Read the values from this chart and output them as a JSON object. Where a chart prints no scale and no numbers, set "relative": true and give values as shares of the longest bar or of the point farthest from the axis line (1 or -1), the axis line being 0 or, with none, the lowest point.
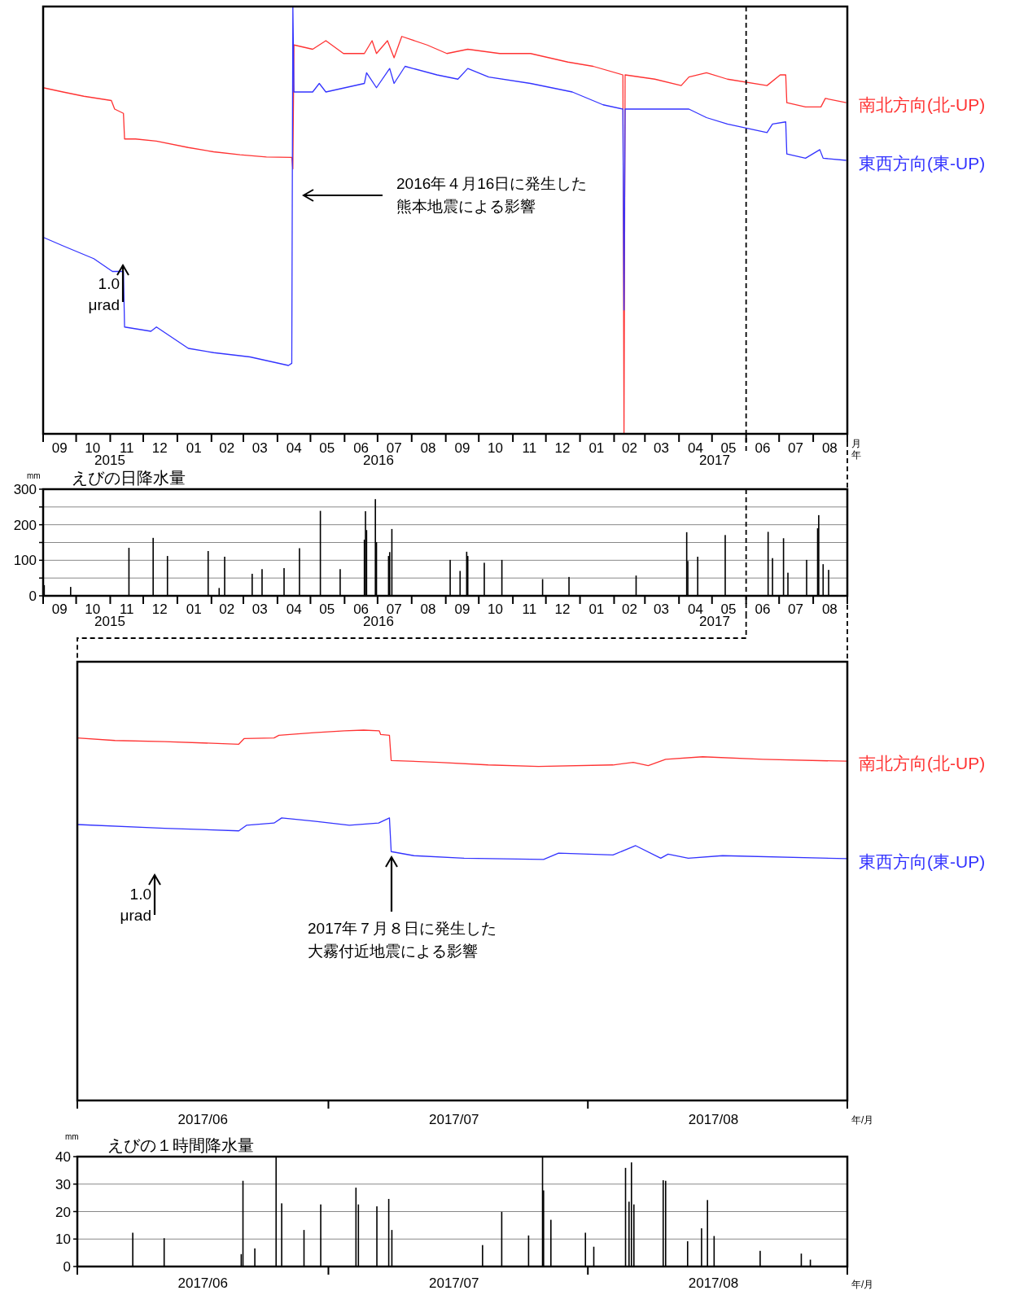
{
  "chart_data": [
    {
      "type": "line",
      "relative": true,
      "legend": false,
      "xlabel": "月",
      "xlim": [
        "2015-09-01",
        "2017-09-01"
      ],
      "xticks": [
        {
          "value": "2015-09-01",
          "label": null
        },
        {
          "value": "2015-09-16",
          "label": "09"
        },
        {
          "value": "2015-10-01",
          "label": null
        },
        {
          "value": "2015-10-16",
          "label": "10"
        },
        {
          "value": "2015-11-01",
          "label": null
        },
        {
          "value": "2015-11-16",
          "label": "11"
        },
        {
          "value": "2015-12-01",
          "label": null
        },
        {
          "value": "2015-12-16",
          "label": "12"
        },
        {
          "value": "2016-01-01",
          "label": null
        },
        {
          "value": "2016-01-16",
          "label": "01"
        },
        {
          "value": "2016-02-01",
          "label": null
        },
        {
          "value": "2016-02-15",
          "label": "02"
        },
        {
          "value": "2016-03-01",
          "label": null
        },
        {
          "value": "2016-03-16",
          "label": "03"
        },
        {
          "value": "2016-04-01",
          "label": null
        },
        {
          "value": "2016-04-16",
          "label": "04"
        },
        {
          "value": "2016-05-01",
          "label": null
        },
        {
          "value": "2016-05-16",
          "label": "05"
        },
        {
          "value": "2016-06-01",
          "label": null
        },
        {
          "value": "2016-06-16",
          "label": "06"
        },
        {
          "value": "2016-07-01",
          "label": null
        },
        {
          "value": "2016-07-16",
          "label": "07"
        },
        {
          "value": "2016-08-01",
          "label": null
        },
        {
          "value": "2016-08-16",
          "label": "08"
        },
        {
          "value": "2016-09-01",
          "label": null
        },
        {
          "value": "2016-09-16",
          "label": "09"
        },
        {
          "value": "2016-10-01",
          "label": null
        },
        {
          "value": "2016-10-16",
          "label": "10"
        },
        {
          "value": "2016-11-01",
          "label": null
        },
        {
          "value": "2016-11-16",
          "label": "11"
        },
        {
          "value": "2016-12-01",
          "label": null
        },
        {
          "value": "2016-12-16",
          "label": "12"
        },
        {
          "value": "2017-01-01",
          "label": null
        },
        {
          "value": "2017-01-16",
          "label": "01"
        },
        {
          "value": "2017-02-01",
          "label": null
        },
        {
          "value": "2017-02-15",
          "label": "02"
        },
        {
          "value": "2017-03-01",
          "label": null
        },
        {
          "value": "2017-03-16",
          "label": "03"
        },
        {
          "value": "2017-04-01",
          "label": null
        },
        {
          "value": "2017-04-16",
          "label": "04"
        },
        {
          "value": "2017-05-01",
          "label": null
        },
        {
          "value": "2017-05-16",
          "label": "05"
        },
        {
          "value": "2017-06-01",
          "label": null
        },
        {
          "value": "2017-06-16",
          "label": "06"
        },
        {
          "value": "2017-07-01",
          "label": null
        },
        {
          "value": "2017-07-16",
          "label": "07"
        },
        {
          "value": "2017-08-01",
          "label": null
        },
        {
          "value": "2017-08-16",
          "label": "08"
        },
        {
          "value": "2017-09-01",
          "label": null
        }
      ],
      "ref_lines": [
        {
          "axis": "x",
          "value": "2017-06-01",
          "line_style": "dashed",
          "color": "#000000"
        }
      ],
      "annotations": [
        "2016年４月16日に発生した",
        "熊本地震による影響",
        "1.0\nμrad",
        "2015",
        "2016",
        "2017",
        "年"
      ],
      "series": [
        {
          "name": "南北方向(北-UP)",
          "color": "#ff3333",
          "x": [
            "2015-09-01",
            "2015-09-19",
            "2015-10-08",
            "2015-11-02",
            "2015-11-05",
            "2015-11-13",
            "2015-11-14",
            "2015-11-24",
            "2015-12-13",
            "2016-01-11",
            "2016-02-03",
            "2016-02-27",
            "2016-03-22",
            "2016-04-14",
            "2016-04-15",
            "2016-04-16",
            "2016-05-03",
            "2016-05-15",
            "2016-05-31",
            "2016-06-19",
            "2016-06-26",
            "2016-06-30",
            "2016-07-10",
            "2016-07-16",
            "2016-07-23",
            "2016-08-15",
            "2016-09-02",
            "2016-09-21",
            "2016-10-20",
            "2016-11-17",
            "2016-12-21",
            "2017-01-13",
            "2017-02-09",
            "2017-02-10",
            "2017-02-11",
            "2017-03-10",
            "2017-04-03",
            "2017-04-10",
            "2017-04-26",
            "2017-05-15",
            "2017-06-20",
            "2017-07-02",
            "2017-07-07",
            "2017-07-08",
            "2017-07-25",
            "2017-08-08",
            "2017-08-12",
            "2017-08-31"
          ],
          "values": [
            0.81,
            0.8,
            0.79,
            0.78,
            0.76,
            0.75,
            0.69,
            0.69,
            0.685,
            0.67,
            0.66,
            0.653,
            0.648,
            0.647,
            0.62,
            0.91,
            0.9,
            0.92,
            0.89,
            0.89,
            0.92,
            0.89,
            0.92,
            0.88,
            0.93,
            0.91,
            0.89,
            0.9,
            0.89,
            0.89,
            0.87,
            0.86,
            0.84,
            0,
            0.84,
            0.83,
            0.815,
            0.835,
            0.845,
            0.83,
            0.815,
            0.84,
            0.84,
            0.775,
            0.765,
            0.765,
            0.785,
            0.775
          ]
        },
        {
          "name": "東西方向(東-UP)",
          "color": "#3333ff",
          "x": [
            "2015-09-01",
            "2015-09-19",
            "2015-10-17",
            "2015-11-03",
            "2015-11-13",
            "2015-11-14",
            "2015-12-08",
            "2015-12-13",
            "2016-01-11",
            "2016-02-03",
            "2016-03-07",
            "2016-04-11",
            "2016-04-14",
            "2016-04-15",
            "2016-04-16",
            "2016-05-03",
            "2016-05-09",
            "2016-05-15",
            "2016-06-19",
            "2016-06-21",
            "2016-06-30",
            "2016-07-12",
            "2016-07-16",
            "2016-07-26",
            "2016-08-24",
            "2016-09-12",
            "2016-09-21",
            "2016-10-10",
            "2016-11-17",
            "2016-12-25",
            "2017-01-22",
            "2017-02-09",
            "2017-02-10",
            "2017-02-11",
            "2017-03-10",
            "2017-04-10",
            "2017-04-26",
            "2017-05-15",
            "2017-06-20",
            "2017-06-25",
            "2017-07-07",
            "2017-07-08",
            "2017-07-25",
            "2017-08-07",
            "2017-08-10",
            "2017-08-31"
          ],
          "values": [
            0.46,
            0.44,
            0.41,
            0.38,
            0.38,
            0.25,
            0.24,
            0.25,
            0.2,
            0.19,
            0.18,
            0.16,
            0.165,
            1,
            0.8,
            0.8,
            0.82,
            0.8,
            0.82,
            0.845,
            0.81,
            0.855,
            0.82,
            0.86,
            0.84,
            0.83,
            0.855,
            0.835,
            0.82,
            0.8,
            0.77,
            0.76,
            0.29,
            0.76,
            0.76,
            0.76,
            0.74,
            0.725,
            0.705,
            0.725,
            0.73,
            0.655,
            0.645,
            0.665,
            0.645,
            0.64
          ]
        }
      ]
    },
    {
      "type": "bar",
      "title": "えびの日降水量",
      "ylabel": "mm",
      "grid": "y",
      "xlim": [
        "2015-09-01",
        "2017-09-01"
      ],
      "ylim": [
        0,
        300
      ],
      "yticks": [
        0,
        {
          "value": 50,
          "label": null
        },
        100,
        {
          "value": 150,
          "label": null
        },
        200,
        {
          "value": 250,
          "label": null
        },
        300
      ],
      "xticks": [
        {
          "value": "2015-09-01",
          "label": null
        },
        {
          "value": "2015-09-16",
          "label": "09"
        },
        {
          "value": "2015-10-01",
          "label": null
        },
        {
          "value": "2015-10-16",
          "label": "10"
        },
        {
          "value": "2015-11-01",
          "label": null
        },
        {
          "value": "2015-11-16",
          "label": "11"
        },
        {
          "value": "2015-12-01",
          "label": null
        },
        {
          "value": "2015-12-16",
          "label": "12"
        },
        {
          "value": "2016-01-01",
          "label": null
        },
        {
          "value": "2016-01-16",
          "label": "01"
        },
        {
          "value": "2016-02-01",
          "label": null
        },
        {
          "value": "2016-02-15",
          "label": "02"
        },
        {
          "value": "2016-03-01",
          "label": null
        },
        {
          "value": "2016-03-16",
          "label": "03"
        },
        {
          "value": "2016-04-01",
          "label": null
        },
        {
          "value": "2016-04-16",
          "label": "04"
        },
        {
          "value": "2016-05-01",
          "label": null
        },
        {
          "value": "2016-05-16",
          "label": "05"
        },
        {
          "value": "2016-06-01",
          "label": null
        },
        {
          "value": "2016-06-16",
          "label": "06"
        },
        {
          "value": "2016-07-01",
          "label": null
        },
        {
          "value": "2016-07-16",
          "label": "07"
        },
        {
          "value": "2016-08-01",
          "label": null
        },
        {
          "value": "2016-08-16",
          "label": "08"
        },
        {
          "value": "2016-09-01",
          "label": null
        },
        {
          "value": "2016-09-16",
          "label": "09"
        },
        {
          "value": "2016-10-01",
          "label": null
        },
        {
          "value": "2016-10-16",
          "label": "10"
        },
        {
          "value": "2016-11-01",
          "label": null
        },
        {
          "value": "2016-11-16",
          "label": "11"
        },
        {
          "value": "2016-12-01",
          "label": null
        },
        {
          "value": "2016-12-16",
          "label": "12"
        },
        {
          "value": "2017-01-01",
          "label": null
        },
        {
          "value": "2017-01-16",
          "label": "01"
        },
        {
          "value": "2017-02-01",
          "label": null
        },
        {
          "value": "2017-02-15",
          "label": "02"
        },
        {
          "value": "2017-03-01",
          "label": null
        },
        {
          "value": "2017-03-16",
          "label": "03"
        },
        {
          "value": "2017-04-01",
          "label": null
        },
        {
          "value": "2017-04-16",
          "label": "04"
        },
        {
          "value": "2017-05-01",
          "label": null
        },
        {
          "value": "2017-05-16",
          "label": "05"
        },
        {
          "value": "2017-06-01",
          "label": null
        },
        {
          "value": "2017-06-16",
          "label": "06"
        },
        {
          "value": "2017-07-01",
          "label": null
        },
        {
          "value": "2017-07-16",
          "label": "07"
        },
        {
          "value": "2017-08-01",
          "label": null
        },
        {
          "value": "2017-08-16",
          "label": "08"
        },
        {
          "value": "2017-09-01",
          "label": null
        }
      ],
      "ref_lines": [
        {
          "axis": "x",
          "value": "2017-06-01",
          "line_style": "dashed",
          "color": "#000000"
        }
      ],
      "annotations": [
        "2015",
        "2016",
        "2017"
      ],
      "series": [
        {
          "color": "#000000",
          "x": [
            "2015-09-02",
            "2015-09-26",
            "2015-11-18",
            "2015-12-10",
            "2015-12-23",
            "2016-01-29",
            "2016-02-08",
            "2016-02-13",
            "2016-03-09",
            "2016-03-18",
            "2016-04-07",
            "2016-04-21",
            "2016-05-10",
            "2016-05-28",
            "2016-06-19",
            "2016-06-20",
            "2016-06-21",
            "2016-06-29",
            "2016-06-30",
            "2016-07-11",
            "2016-07-12",
            "2016-07-14",
            "2016-09-05",
            "2016-09-14",
            "2016-09-20",
            "2016-09-21",
            "2016-10-06",
            "2016-10-22",
            "2016-11-28",
            "2016-12-22",
            "2017-02-21",
            "2017-04-08",
            "2017-04-09",
            "2017-04-18",
            "2017-05-13",
            "2017-06-21",
            "2017-06-25",
            "2017-07-05",
            "2017-07-09",
            "2017-07-26",
            "2017-08-05",
            "2017-08-06",
            "2017-08-10",
            "2017-08-15"
          ],
          "values": [
            30,
            25,
            135,
            163,
            112,
            126,
            22,
            110,
            62,
            75,
            78,
            134,
            239,
            75,
            158,
            238,
            185,
            272,
            151,
            112,
            123,
            188,
            101,
            70,
            124,
            112,
            93,
            101,
            47,
            53,
            57,
            179,
            98,
            110,
            171,
            180,
            106,
            162,
            65,
            101,
            190,
            227,
            89,
            73
          ]
        }
      ]
    },
    {
      "type": "line",
      "relative": true,
      "legend": false,
      "xlabel": "年/月",
      "xlim": [
        "2017-06-01",
        "2017-09-01"
      ],
      "xticks": [
        {
          "value": "2017-06-01",
          "label": null
        },
        {
          "value": "2017-06-16",
          "label": "2017/06"
        },
        {
          "value": "2017-07-01",
          "label": null
        },
        {
          "value": "2017-07-16",
          "label": "2017/07"
        },
        {
          "value": "2017-08-01",
          "label": null
        },
        {
          "value": "2017-08-16",
          "label": "2017/08"
        },
        {
          "value": "2017-09-01",
          "label": null
        }
      ],
      "annotations": [
        "2017年７月８日に発生した",
        "大霧付近地震による影響",
        "1.0\nμrad"
      ],
      "series": [
        {
          "name": "南北方向(北-UP)",
          "color": "#ff3333",
          "x": [
            "2017-06-01",
            "2017-06-05T12:00",
            "2017-06-11T10:00",
            "2017-06-20T07:00",
            "2017-06-20T22:00",
            "2017-06-24T12:00",
            "2017-06-25T02:00",
            "2017-06-29T07:00",
            "2017-07-02T22:00",
            "2017-07-05T05:00",
            "2017-07-07T02:00",
            "2017-07-07T06:00",
            "2017-07-08T07:00",
            "2017-07-08T12:00",
            "2017-07-14T05:00",
            "2017-07-20T02:00",
            "2017-07-26T02:00",
            "2017-08-04T00:00",
            "2017-08-06T10:00",
            "2017-08-08T05:00",
            "2017-08-10T07:00",
            "2017-08-14T17:00",
            "2017-08-21T22:00",
            "2017-08-31T22:00"
          ],
          "values": [
            0.979,
            0.972,
            0.969,
            0.962,
            0.977,
            0.979,
            0.986,
            0.993,
            0.998,
            1,
            0.998,
            0.988,
            0.986,
            0.918,
            0.913,
            0.906,
            0.902,
            0.906,
            0.913,
            0.904,
            0.921,
            0.928,
            0.921,
            0.916
          ]
        },
        {
          "name": "東西方向(東-UP)",
          "color": "#3333ff",
          "x": [
            "2017-06-01",
            "2017-06-11T10:00",
            "2017-06-20T07:00",
            "2017-06-21T05:00",
            "2017-06-24T12:00",
            "2017-06-25T10:00",
            "2017-06-29T07:00",
            "2017-07-03T12:00",
            "2017-07-07T00:00",
            "2017-07-08T07:00",
            "2017-07-08T12:00",
            "2017-07-11T05:00",
            "2017-07-17T05:00",
            "2017-07-26T17:00",
            "2017-07-28T12:00",
            "2017-08-04T00:00",
            "2017-08-06T17:00",
            "2017-08-09T17:00",
            "2017-08-10T14:00",
            "2017-08-13T00:00",
            "2017-08-17T02:00",
            "2017-08-31T22:00"
          ],
          "values": [
            0.745,
            0.735,
            0.728,
            0.743,
            0.749,
            0.763,
            0.754,
            0.743,
            0.749,
            0.763,
            0.672,
            0.661,
            0.654,
            0.651,
            0.668,
            0.663,
            0.688,
            0.654,
            0.665,
            0.654,
            0.661,
            0.653
          ]
        }
      ]
    },
    {
      "type": "bar",
      "title": "えびの１時間降水量",
      "ylabel": "mm",
      "xlabel": "年/月",
      "grid": "y",
      "xlim": [
        "2017-06-01",
        "2017-09-01"
      ],
      "ylim": [
        0,
        40
      ],
      "yticks": [
        0,
        10,
        20,
        30,
        40
      ],
      "xticks": [
        {
          "value": "2017-06-01",
          "label": null
        },
        {
          "value": "2017-06-16",
          "label": "2017/06"
        },
        {
          "value": "2017-07-01",
          "label": null
        },
        {
          "value": "2017-07-16",
          "label": "2017/07"
        },
        {
          "value": "2017-08-01",
          "label": null
        },
        {
          "value": "2017-08-16",
          "label": "2017/08"
        },
        {
          "value": "2017-09-01",
          "label": null
        }
      ],
      "series": [
        {
          "color": "#000000",
          "x": [
            "2017-06-07T15:00",
            "2017-06-11T09:00",
            "2017-06-20T14:00",
            "2017-06-20T19:00",
            "2017-06-22T05:00",
            "2017-06-24T18:00",
            "2017-06-25T10:00",
            "2017-06-28T02:00",
            "2017-06-30T02:00",
            "2017-07-04T07:00",
            "2017-07-04T14:00",
            "2017-07-06T19:00",
            "2017-07-08T05:00",
            "2017-07-08T14:00",
            "2017-07-19T10:00",
            "2017-07-21T17:00",
            "2017-07-24T22:00",
            "2017-07-26T14:00",
            "2017-07-26T17:00",
            "2017-07-27T14:00",
            "2017-07-31T17:00",
            "2017-08-01T17:00",
            "2017-08-05T12:00",
            "2017-08-05T22:00",
            "2017-08-06T05:00",
            "2017-08-06T12:00",
            "2017-08-10T00:00",
            "2017-08-10T07:00",
            "2017-08-12T22:00",
            "2017-08-14T14:00",
            "2017-08-15T07:00",
            "2017-08-16T02:00",
            "2017-08-21T14:00",
            "2017-08-26T12:00",
            "2017-08-27T14:00"
          ],
          "values": [
            12.3,
            10.3,
            4.5,
            31.2,
            6.6,
            40,
            23,
            13.3,
            22.6,
            28.7,
            22.6,
            21.9,
            24.6,
            13.3,
            7.8,
            19.9,
            11.3,
            40,
            27.7,
            17,
            12.3,
            7.2,
            35.9,
            23.6,
            37.9,
            22.6,
            31.4,
            31.2,
            9.2,
            13.9,
            24.2,
            11.1,
            5.7,
            4.7,
            2.5
          ]
        }
      ]
    }
  ]
}
